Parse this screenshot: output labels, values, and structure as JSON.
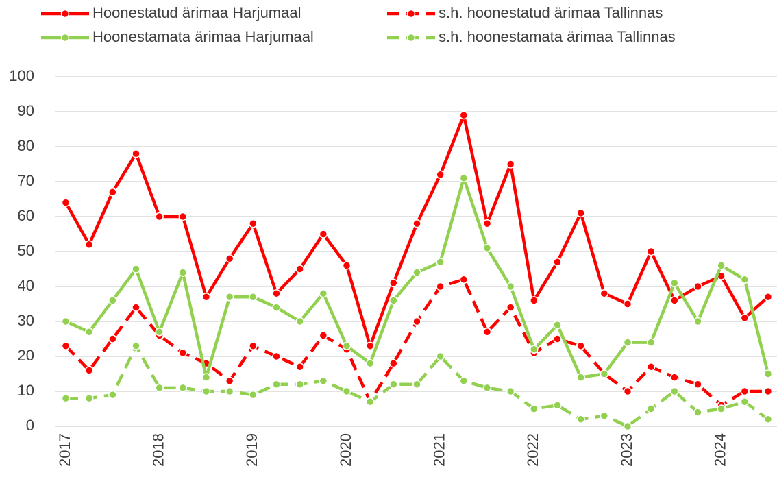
{
  "chart_data": {
    "type": "line",
    "categories": [
      "2017",
      null,
      null,
      null,
      "2018",
      null,
      null,
      null,
      "2019",
      null,
      null,
      null,
      "2020",
      null,
      null,
      null,
      "2021",
      null,
      null,
      null,
      "2022",
      null,
      null,
      null,
      "2023",
      null,
      null,
      null,
      "2024",
      null,
      null
    ],
    "series": [
      {
        "name": "Hoonestatud ärimaa Harjumaal",
        "color": "#ff0000",
        "dashed": false,
        "values": [
          64,
          52,
          67,
          78,
          60,
          60,
          37,
          48,
          58,
          38,
          45,
          55,
          46,
          23,
          41,
          58,
          72,
          89,
          58,
          75,
          36,
          47,
          61,
          38,
          35,
          50,
          36,
          40,
          43,
          31,
          37
        ]
      },
      {
        "name": "s.h. hoonestatud ärimaa Tallinnas",
        "color": "#ff0000",
        "dashed": true,
        "values": [
          23,
          16,
          25,
          34,
          26,
          21,
          18,
          13,
          23,
          20,
          17,
          26,
          22,
          7,
          18,
          30,
          40,
          42,
          27,
          34,
          21,
          25,
          23,
          15,
          10,
          17,
          14,
          12,
          6,
          10,
          10
        ]
      },
      {
        "name": "Hoonestamata ärimaa Harjumaal",
        "color": "#92d050",
        "dashed": false,
        "values": [
          30,
          27,
          36,
          45,
          27,
          44,
          14,
          37,
          37,
          34,
          30,
          38,
          23,
          18,
          36,
          44,
          47,
          71,
          51,
          40,
          22,
          29,
          14,
          15,
          24,
          24,
          41,
          30,
          46,
          42,
          15
        ]
      },
      {
        "name": "s.h. hoonestamata ärimaa Tallinnas",
        "color": "#92d050",
        "dashed": true,
        "values": [
          8,
          8,
          9,
          23,
          11,
          11,
          10,
          10,
          9,
          12,
          12,
          13,
          10,
          7,
          12,
          12,
          20,
          13,
          11,
          10,
          5,
          6,
          2,
          3,
          0,
          5,
          10,
          4,
          5,
          7,
          2
        ]
      }
    ],
    "ylim": [
      0,
      100
    ],
    "yticks": [
      0,
      10,
      20,
      30,
      40,
      50,
      60,
      70,
      80,
      90,
      100
    ],
    "grid": true,
    "legend": "top"
  }
}
